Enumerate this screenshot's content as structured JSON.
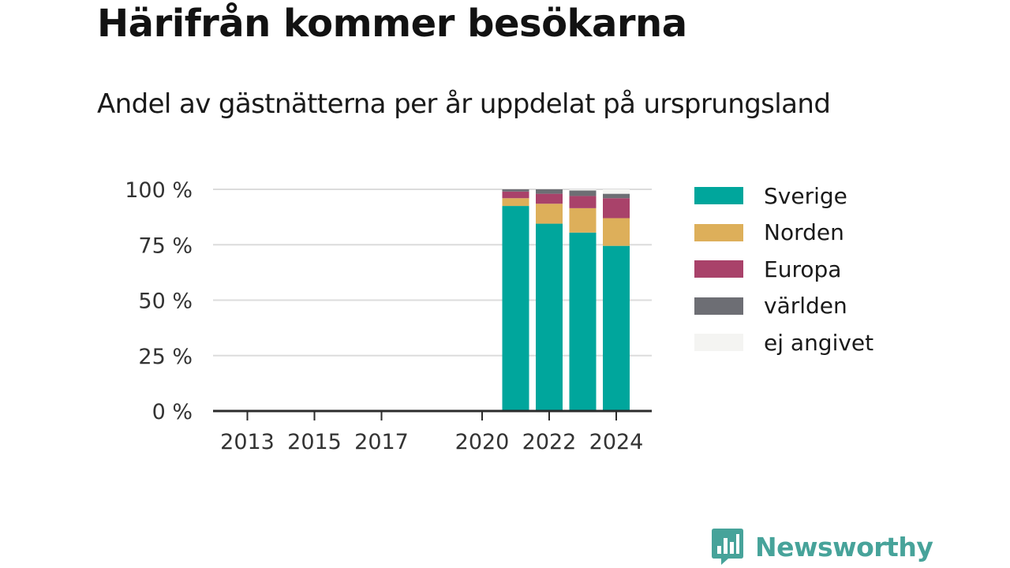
{
  "title": "Härifrån kommer besökarna",
  "subtitle": "Andel av gästnätterna per år uppdelat på ursprungsland",
  "brand": {
    "name": "Newsworthy",
    "icon": "newsworthy-logo-icon",
    "color": "#47a39a"
  },
  "chart_data": {
    "type": "bar",
    "stacked": true,
    "title": "Härifrån kommer besökarna",
    "subtitle": "Andel av gästnätterna per år uppdelat på ursprungsland",
    "x": [
      2013,
      2014,
      2015,
      2016,
      2017,
      2018,
      2019,
      2020,
      2021,
      2022,
      2023,
      2024
    ],
    "x_ticks": [
      2013,
      2015,
      2017,
      2020,
      2022,
      2024
    ],
    "x_tick_labels": [
      "2013",
      "2015",
      "2017",
      "2020",
      "2022",
      "2024"
    ],
    "xlim": [
      2012.5,
      2024.5
    ],
    "ylim": [
      0,
      100
    ],
    "y_ticks": [
      0,
      25,
      50,
      75,
      100
    ],
    "y_tick_labels": [
      "0 %",
      "25 %",
      "50 %",
      "75 %",
      "100 %"
    ],
    "grid": true,
    "legend_position": "right",
    "series": [
      {
        "name": "Sverige",
        "color": "#00a69c",
        "values": [
          null,
          null,
          null,
          null,
          null,
          null,
          null,
          null,
          92.5,
          84.5,
          80.5,
          74.5
        ]
      },
      {
        "name": "Norden",
        "color": "#ddaf5a",
        "values": [
          null,
          null,
          null,
          null,
          null,
          null,
          null,
          null,
          3.5,
          9,
          11,
          12.5
        ]
      },
      {
        "name": "Europa",
        "color": "#a9426a",
        "values": [
          null,
          null,
          null,
          null,
          null,
          null,
          null,
          null,
          3,
          4.5,
          5.5,
          9
        ]
      },
      {
        "name": "världen",
        "color": "#6d6e74",
        "values": [
          null,
          null,
          null,
          null,
          null,
          null,
          null,
          null,
          1,
          2,
          2.5,
          2
        ]
      },
      {
        "name": "ej angivet",
        "color": "#f4f4f2",
        "values": [
          null,
          null,
          null,
          null,
          null,
          null,
          null,
          null,
          0,
          0,
          0.5,
          2
        ]
      }
    ]
  }
}
